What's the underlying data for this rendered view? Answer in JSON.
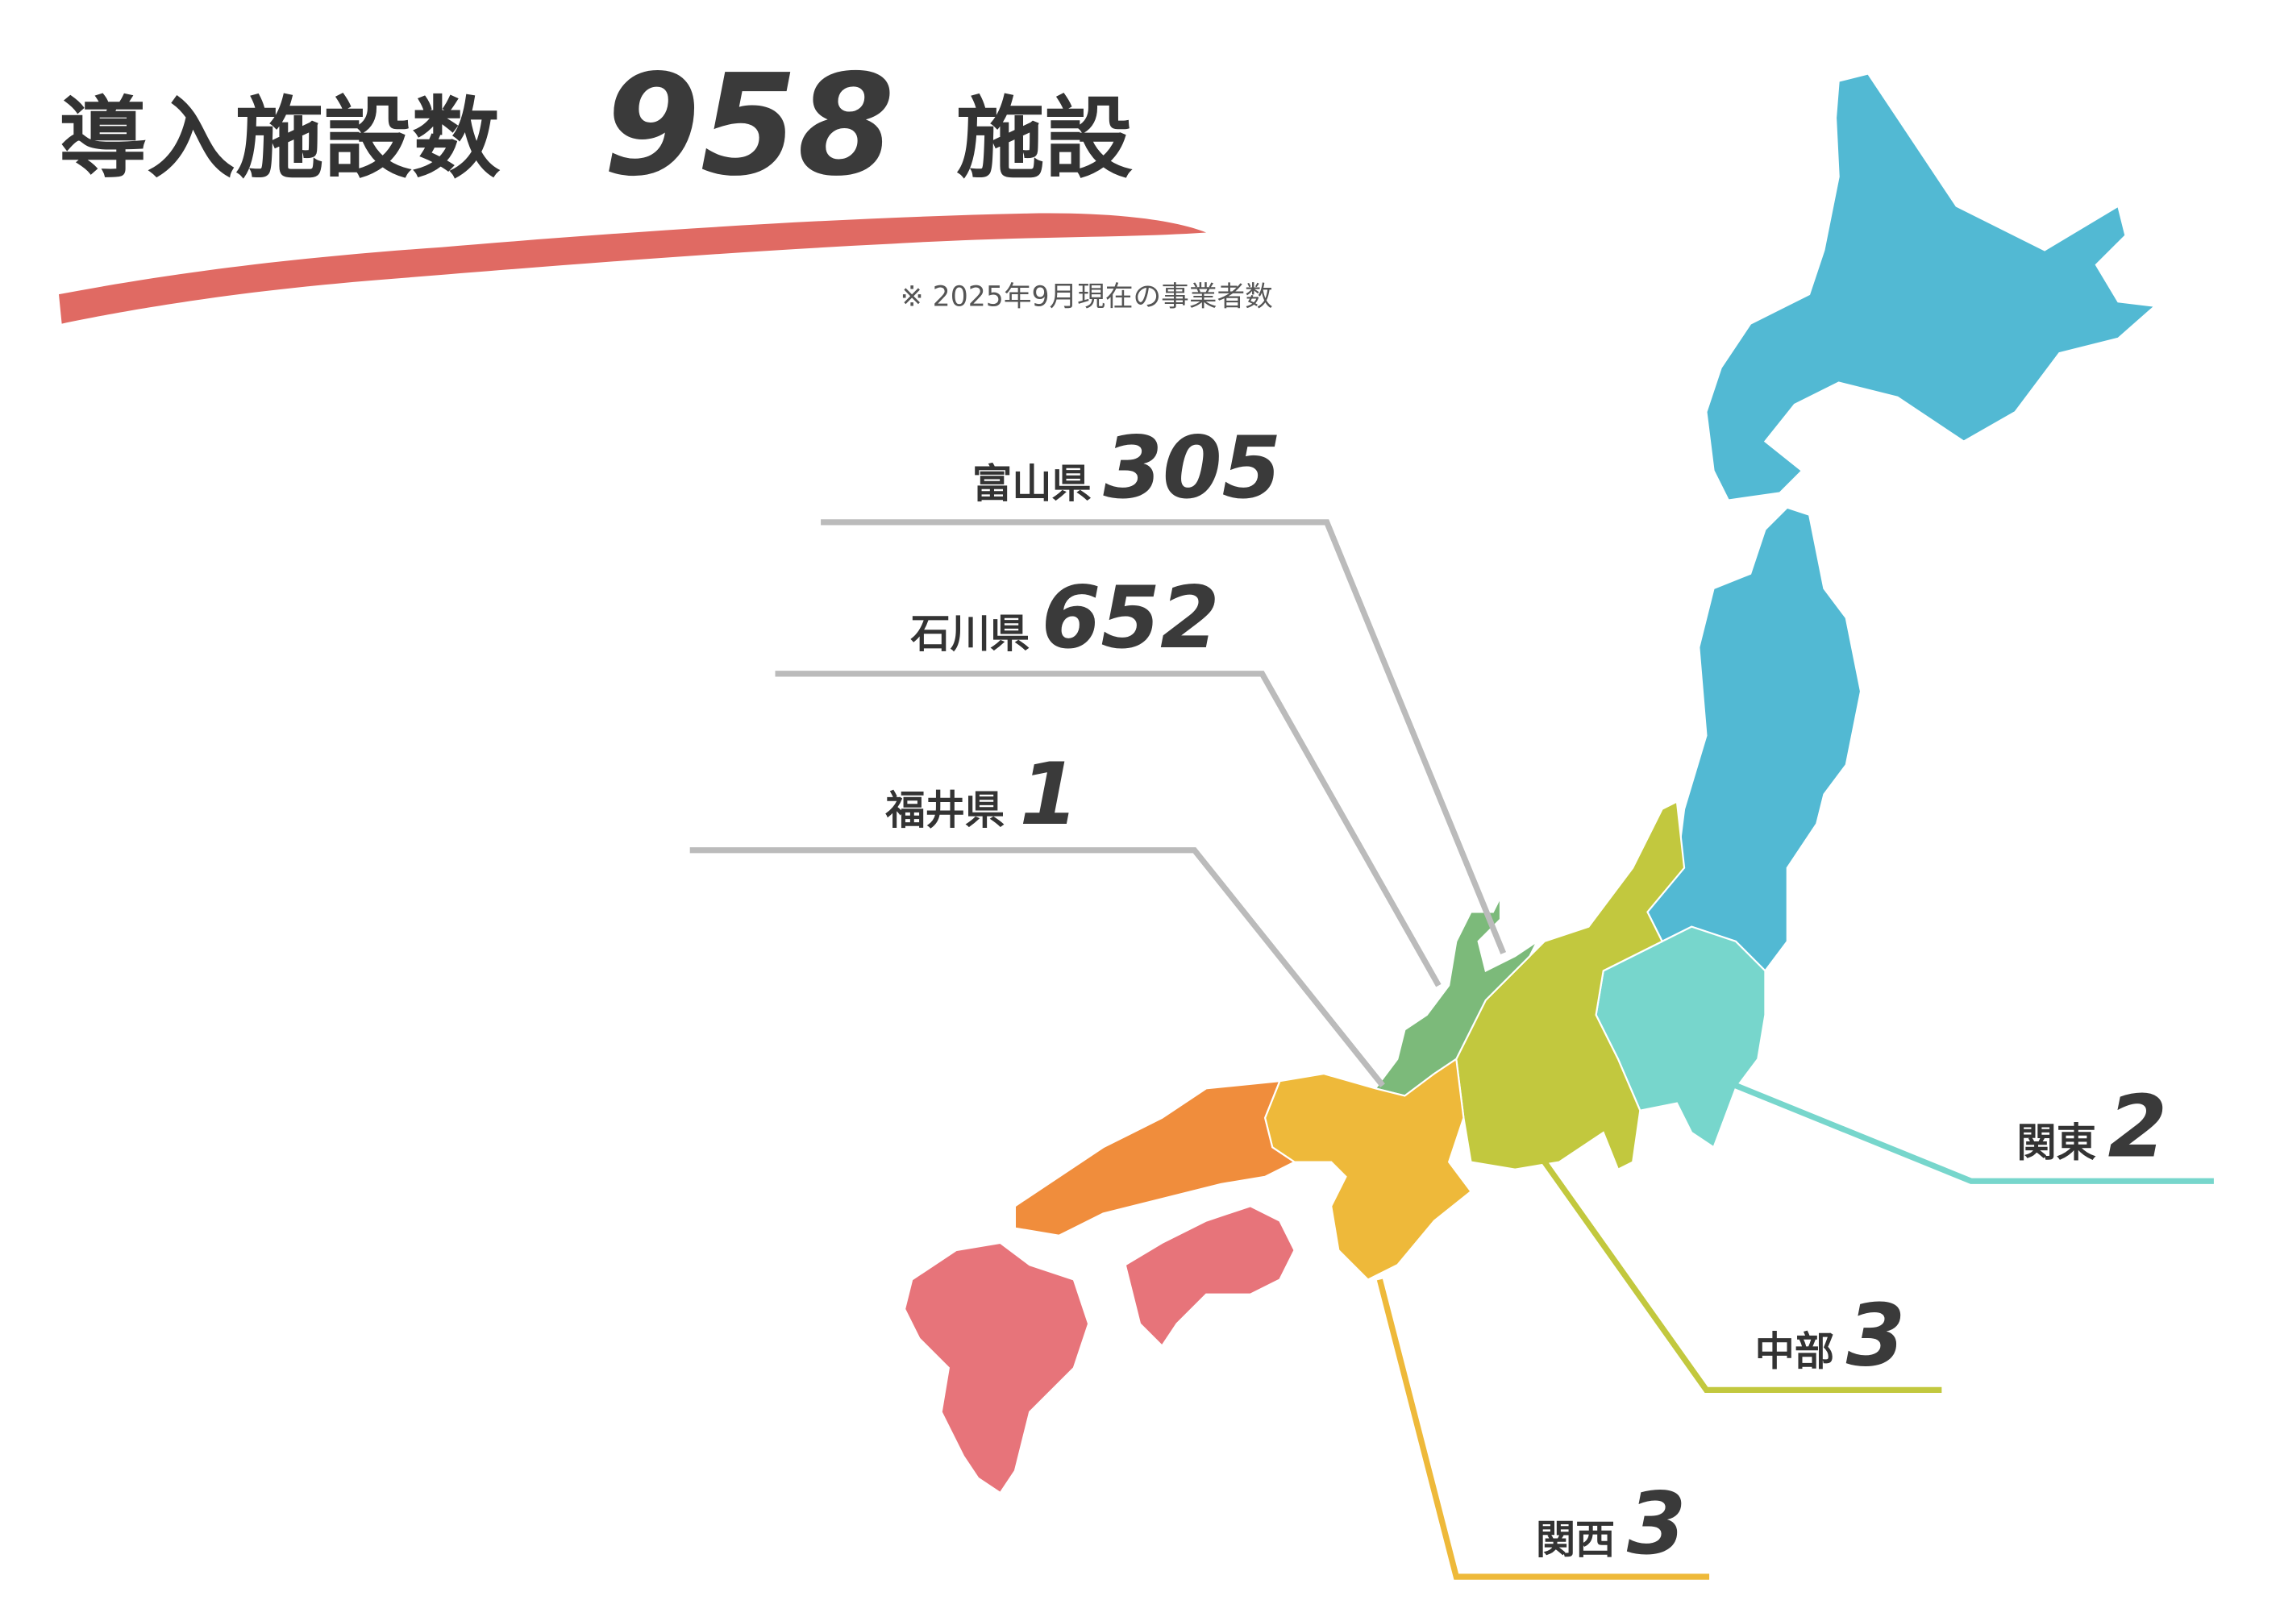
{
  "header": {
    "title": "導入施設数",
    "count": 958,
    "unit": "施設",
    "note": "※ 2025年9月現在の事業者数"
  },
  "callouts": [
    {
      "label": "富山県",
      "count": 305
    },
    {
      "label": "石川県",
      "count": 652
    },
    {
      "label": "福井県",
      "count": 1
    },
    {
      "label": "関東",
      "count": 2
    },
    {
      "label": "中部",
      "count": 3
    },
    {
      "label": "関西",
      "count": 3
    }
  ]
}
